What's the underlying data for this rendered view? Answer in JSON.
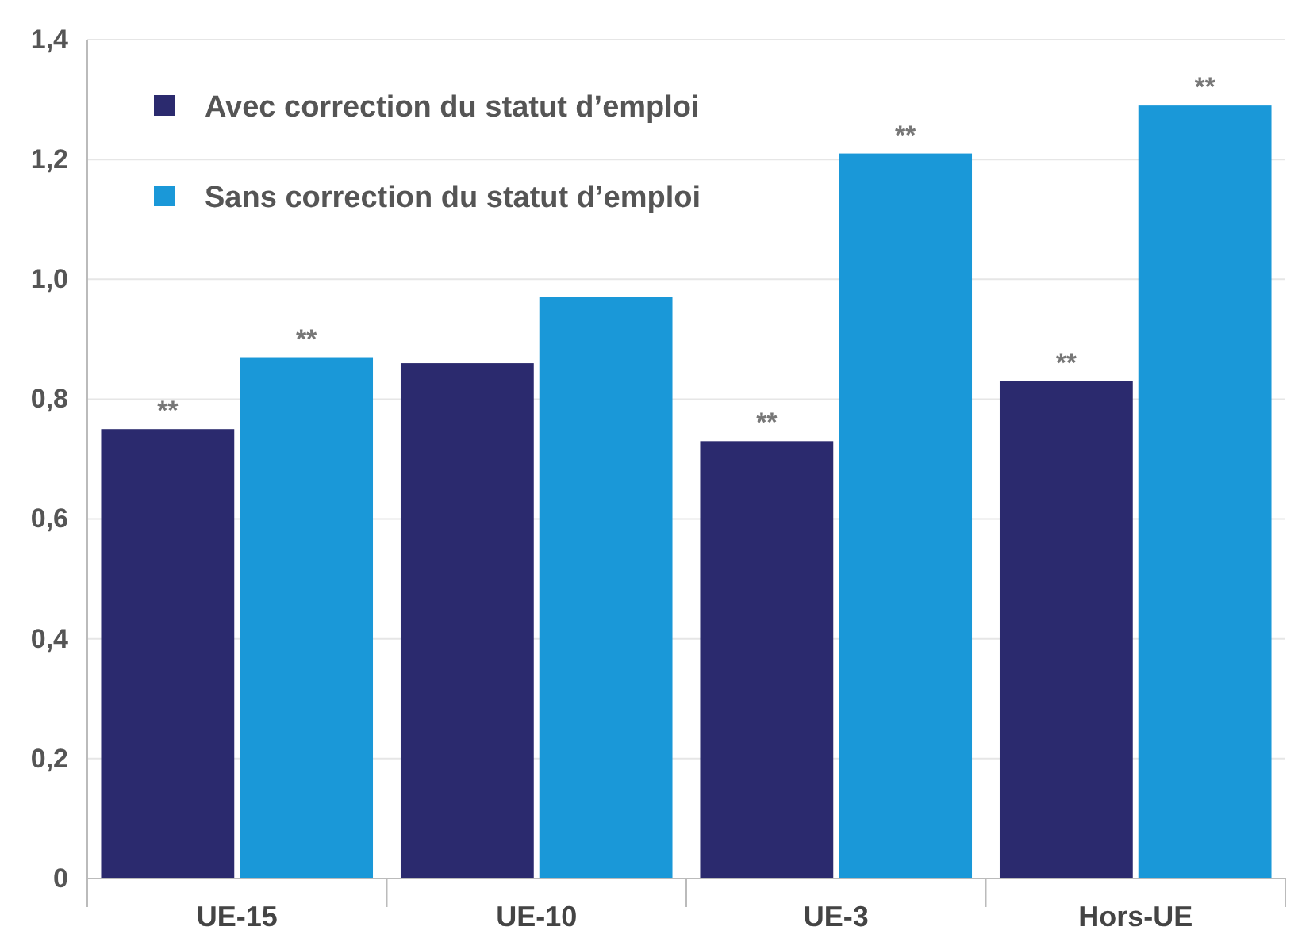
{
  "chart_data": {
    "type": "bar",
    "categories": [
      "UE-15",
      "UE-10",
      "UE-3",
      "Hors-UE"
    ],
    "series": [
      {
        "name": "Avec correction du statut d’emploi",
        "color": "#2b2a6e",
        "values": [
          0.75,
          0.86,
          0.73,
          0.83
        ]
      },
      {
        "name": "Sans correction du statut d’emploi",
        "color": "#1a98d8",
        "values": [
          0.87,
          0.97,
          1.21,
          1.29
        ]
      }
    ],
    "ylim": [
      0,
      1.4
    ],
    "yticks": [
      0,
      {
        "value": 0.2,
        "label": "0,2"
      },
      {
        "value": 0.4,
        "label": "0,4"
      },
      {
        "value": 0.6,
        "label": "0,6"
      },
      {
        "value": 0.8,
        "label": "0,8"
      },
      {
        "value": 1.0,
        "label": "1,0"
      },
      {
        "value": 1.2,
        "label": "1,2"
      },
      {
        "value": 1.4,
        "label": "1,4"
      }
    ],
    "grid": "y",
    "legend": "top left",
    "annotations": [
      {
        "text": "**",
        "x": "UE-15",
        "y": 0.75
      },
      {
        "text": "**",
        "x": "UE-15",
        "y": 0.87
      },
      {
        "text": "**",
        "x": "UE-3",
        "y": 0.73
      },
      {
        "text": "**",
        "x": "UE-3",
        "y": 1.21
      },
      {
        "text": "**",
        "x": "Hors-UE",
        "y": 0.83
      },
      {
        "text": "**",
        "x": "Hors-UE",
        "y": 1.29
      }
    ]
  }
}
